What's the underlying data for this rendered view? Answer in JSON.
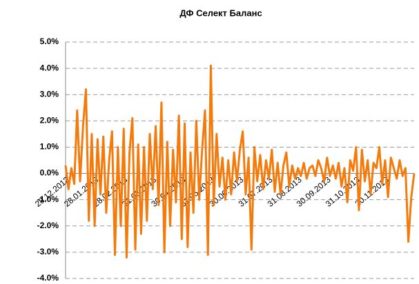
{
  "chart_data": {
    "type": "line",
    "title": "ДФ Селект Баланс",
    "x": [
      0,
      0.1,
      0.2,
      0.3,
      0.4,
      0.5,
      0.6,
      0.7,
      0.8,
      0.9,
      1.0,
      1.1,
      1.2,
      1.3,
      1.4,
      1.5,
      1.6,
      1.7,
      1.8,
      1.9,
      2.0,
      2.1,
      2.2,
      2.3,
      2.4,
      2.5,
      2.6,
      2.7,
      2.8,
      2.9,
      3.0,
      3.1,
      3.2,
      3.3,
      3.4,
      3.5,
      3.6,
      3.7,
      3.8,
      3.9,
      4.0,
      4.1,
      4.2,
      4.3,
      4.4,
      4.5,
      4.6,
      4.7,
      4.8,
      4.9,
      5.0,
      5.1,
      5.2,
      5.3,
      5.4,
      5.5,
      5.6,
      5.7,
      5.8,
      5.9,
      6.0,
      6.1,
      6.2,
      6.3,
      6.4,
      6.5,
      6.6,
      6.7,
      6.8,
      6.9,
      7.0,
      7.1,
      7.2,
      7.3,
      7.4,
      7.5,
      7.6,
      7.7,
      7.8,
      7.9,
      8.0,
      8.1,
      8.2,
      8.3,
      8.4,
      8.5,
      8.6,
      8.7,
      8.8,
      8.9,
      9.0,
      9.1,
      9.2,
      9.3,
      9.4,
      9.5,
      9.6,
      9.7,
      9.8,
      9.9,
      10.0,
      10.1,
      10.2,
      10.3,
      10.4,
      10.5,
      10.6,
      10.7,
      10.8,
      10.9,
      11.0,
      11.1,
      11.2,
      11.3,
      11.4,
      11.5,
      11.6,
      11.7,
      11.8,
      11.9,
      12.0
    ],
    "series": [
      {
        "color": "#f47b0b",
        "values": [
          0.3,
          -0.6,
          0.2,
          -0.4,
          2.4,
          -0.3,
          1.8,
          3.2,
          -1.8,
          1.5,
          -2.0,
          1.3,
          -0.8,
          1.4,
          -1.5,
          0.5,
          1.6,
          -3.1,
          1.0,
          -2.0,
          1.7,
          -3.2,
          0.8,
          2.1,
          -2.9,
          1.1,
          -2.3,
          1.0,
          -1.8,
          1.5,
          -0.6,
          1.8,
          -1.2,
          2.7,
          -3.0,
          1.2,
          -2.0,
          0.9,
          -1.1,
          2.2,
          -2.5,
          1.9,
          -2.8,
          0.8,
          -1.5,
          2.0,
          -1.0,
          0.9,
          2.4,
          -3.1,
          4.1,
          -1.2,
          1.5,
          -0.5,
          0.6,
          -1.0,
          0.5,
          -0.8,
          0.8,
          -0.3,
          0.9,
          1.6,
          -0.8,
          0.6,
          -2.9,
          1.0,
          -0.3,
          0.7,
          -0.6,
          0.5,
          -0.2,
          0.9,
          -0.7,
          0.4,
          -0.8,
          0.3,
          0.8,
          -0.5,
          0.3,
          -0.2,
          0.2,
          -0.1,
          0.4,
          -0.2,
          0.2,
          0.3,
          -0.1,
          0.5,
          0.2,
          -0.3,
          0.6,
          -0.1,
          0.3,
          -0.2,
          0.4,
          -0.5,
          0.2,
          -1.1,
          0.5,
          0.1,
          1.0,
          -1.4,
          0.9,
          -0.3,
          0.5,
          -0.8,
          0.4,
          0.2,
          1.0,
          -0.4,
          0.5,
          -0.9,
          0.6,
          0.2,
          -0.2,
          0.5,
          -0.1,
          0.2,
          -2.6,
          -0.9,
          0.0
        ]
      }
    ],
    "xlim": [
      0,
      12
    ],
    "xticks": [
      {
        "value": 0,
        "label": "28.12.2012"
      },
      {
        "value": 1,
        "label": "28.01.2013"
      },
      {
        "value": 2,
        "label": "28.02.2013"
      },
      {
        "value": 3,
        "label": "31.03.2013"
      },
      {
        "value": 4,
        "label": "30.04.2013"
      },
      {
        "value": 5,
        "label": "31.05.2013"
      },
      {
        "value": 6,
        "label": "30.06.2013"
      },
      {
        "value": 7,
        "label": "31.07.2013"
      },
      {
        "value": 8,
        "label": "31.08.2013"
      },
      {
        "value": 9,
        "label": "30.09.2013"
      },
      {
        "value": 10,
        "label": "31.10.2013"
      },
      {
        "value": 11,
        "label": "30.11.2013"
      }
    ],
    "ylim": [
      -4,
      5
    ],
    "yticks": [
      {
        "value": -4,
        "label": "-4.0%"
      },
      {
        "value": -3,
        "label": "-3.0%"
      },
      {
        "value": -2,
        "label": "-2.0%"
      },
      {
        "value": -1,
        "label": "-1.0%"
      },
      {
        "value": 0,
        "label": "0.0%"
      },
      {
        "value": 1,
        "label": "1.0%"
      },
      {
        "value": 2,
        "label": "2.0%"
      },
      {
        "value": 3,
        "label": "3.0%"
      },
      {
        "value": 4,
        "label": "4.0%"
      },
      {
        "value": 5,
        "label": "5.0%"
      }
    ],
    "grid": true
  }
}
